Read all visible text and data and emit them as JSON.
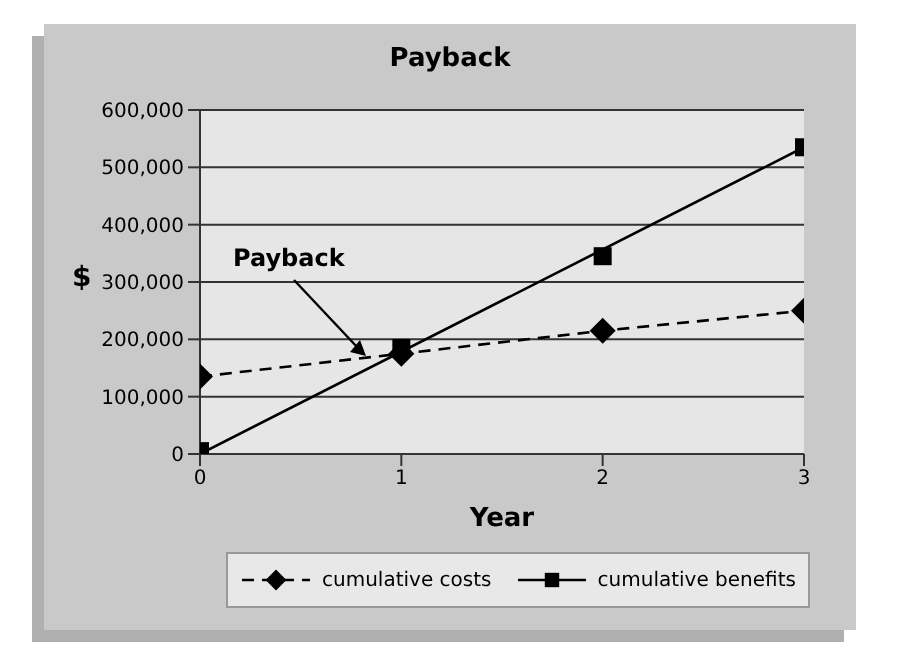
{
  "chart_data": {
    "type": "line",
    "title": "Payback",
    "xlabel": "Year",
    "ylabel": "$",
    "xlim": [
      0,
      3
    ],
    "xticks": [
      0,
      1,
      2,
      3
    ],
    "ylim": [
      0,
      600000
    ],
    "yticks": [
      {
        "value": 0,
        "label": "0"
      },
      {
        "value": 100000,
        "label": "100,000"
      },
      {
        "value": 200000,
        "label": "200,000"
      },
      {
        "value": 300000,
        "label": "300,000"
      },
      {
        "value": 400000,
        "label": "400,000"
      },
      {
        "value": 500000,
        "label": "500,000"
      },
      {
        "value": 600000,
        "label": "600,000"
      }
    ],
    "grid": "y",
    "legend": "bottom",
    "series": [
      {
        "name": "cumulative costs",
        "type": "line",
        "color": "#000000",
        "marker": "diamond",
        "line_style": "dashed",
        "x": [
          0,
          1,
          2,
          3
        ],
        "values": [
          135000,
          175000,
          215000,
          250000
        ]
      },
      {
        "name": "cumulative benefits",
        "type": "scatter",
        "color": "#000000",
        "marker": "square",
        "x": [
          0,
          1,
          2,
          3
        ],
        "values": [
          5000,
          185000,
          345000,
          535000
        ]
      },
      {
        "type": "line",
        "color": "#000000",
        "marker": "none",
        "line_style": "solid",
        "x": [
          0,
          3
        ],
        "values": [
          0,
          535000
        ]
      }
    ],
    "annotations": [
      {
        "text": "Payback",
        "x": 0.82,
        "y": 170000
      }
    ]
  }
}
